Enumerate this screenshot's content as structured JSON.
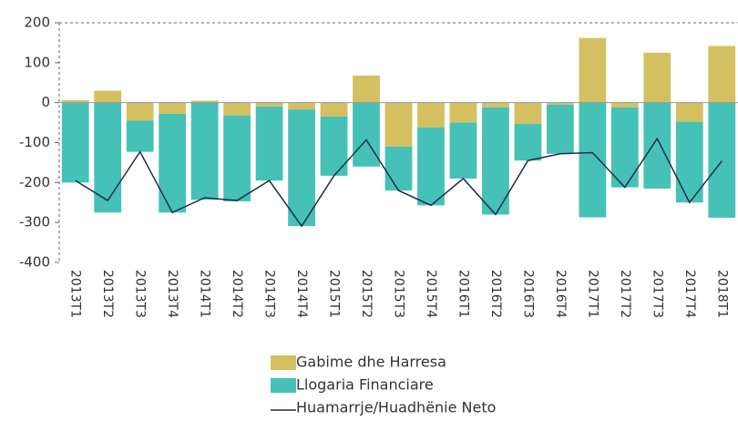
{
  "chart_data": {
    "type": "bar",
    "categories": [
      "2013T1",
      "2013T2",
      "2013T3",
      "2013T4",
      "2014T1",
      "2014T2",
      "2014T3",
      "2014T4",
      "2015T1",
      "2015T2",
      "2015T3",
      "2015T4",
      "2016T1",
      "2016T2",
      "2016T3",
      "2016T4",
      "2017T1",
      "2017T2",
      "2017T3",
      "2017T4",
      "2018T1"
    ],
    "series": [
      {
        "name": "Gabime dhe Harresa",
        "color": "#d4c060",
        "kind": "bar",
        "values": [
          6,
          30,
          -45,
          -28,
          5,
          -32,
          -10,
          -17,
          -35,
          68,
          -110,
          -62,
          -50,
          -12,
          -53,
          -5,
          162,
          -12,
          125,
          -48,
          142
        ]
      },
      {
        "name": "Llogaria Financiare",
        "color": "#45c1b8",
        "kind": "bar",
        "values": [
          -200,
          -275,
          -78,
          -247,
          -243,
          -215,
          -185,
          -292,
          -148,
          -160,
          -110,
          -195,
          -140,
          -268,
          -92,
          -123,
          -287,
          -200,
          -215,
          -202,
          -288
        ]
      },
      {
        "name": "Huamarrje/Huadhënie Neto",
        "color": "#1f2d4a",
        "kind": "line",
        "values": [
          -195,
          -245,
          -123,
          -275,
          -238,
          -245,
          -195,
          -309,
          -183,
          -93,
          -220,
          -257,
          -190,
          -280,
          -145,
          -128,
          -125,
          -212,
          -90,
          -250,
          -146
        ]
      }
    ],
    "ylim": [
      -400,
      200
    ],
    "yticks": [
      -400,
      -300,
      -200,
      -100,
      0,
      100,
      200
    ],
    "grid": false
  }
}
